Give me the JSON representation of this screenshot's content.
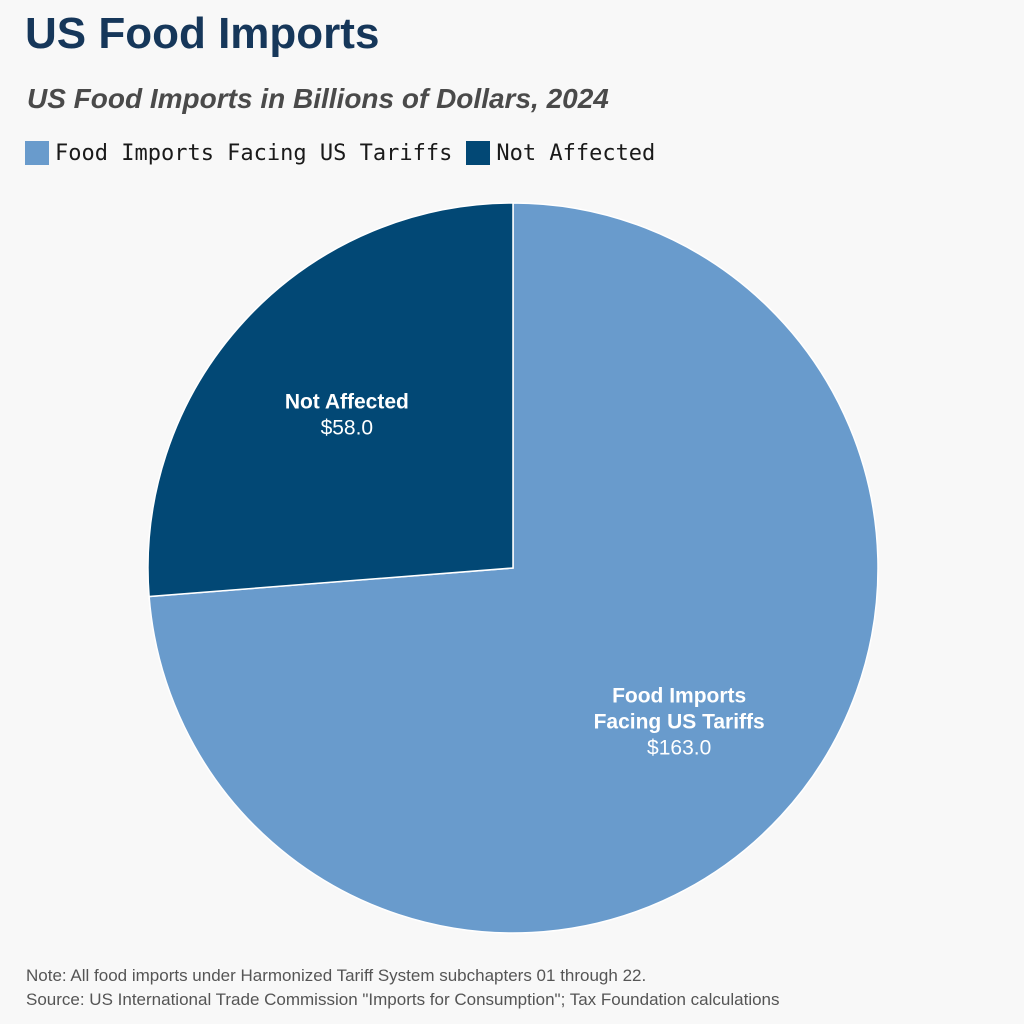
{
  "chart_data": {
    "type": "pie",
    "title": "US Food Imports",
    "subtitle": "US Food Imports in Billions of Dollars, 2024",
    "legend_position": "top-left",
    "slices": [
      {
        "name": "Food Imports Facing US Tariffs",
        "label_lines": [
          "Food Imports",
          "Facing US Tariffs"
        ],
        "value": 163.0,
        "value_label": "$163.0",
        "color": "#699bcc"
      },
      {
        "name": "Not Affected",
        "label_lines": [
          "Not Affected"
        ],
        "value": 58.0,
        "value_label": "$58.0",
        "color": "#024875"
      }
    ]
  },
  "footer": {
    "note": "Note: All food imports under Harmonized Tariff System subchapters 01 through 22.",
    "source": "Source: US International Trade Commission \"Imports for Consumption\"; Tax Foundation calculations"
  }
}
